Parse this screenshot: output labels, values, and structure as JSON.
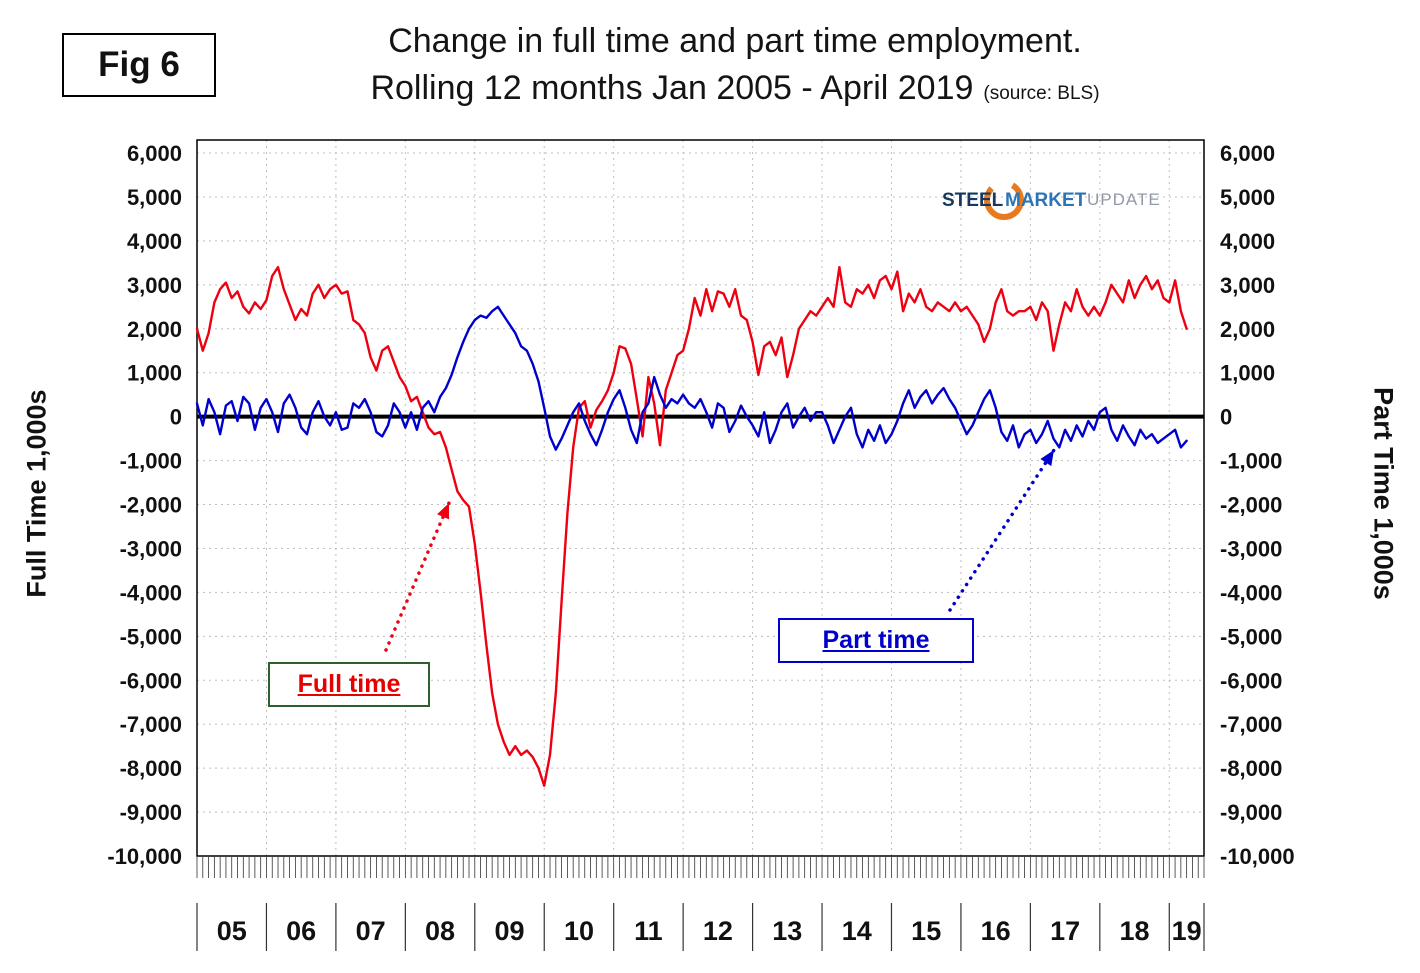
{
  "figure_label": "Fig 6",
  "title_line1": "Change in full time and part time employment.",
  "title_line2": "Rolling 12 months Jan 2005 - April 2019",
  "source_note": "(source: BLS)",
  "left_axis_title": "Full Time 1,000s",
  "right_axis_title": "Part Time 1,000s",
  "logo": {
    "word1": "STEEL",
    "word2": "MARKET",
    "word3": "UPDATE",
    "swoosh_color": "#e87a1e"
  },
  "annotations": {
    "full_time_label": "Full time",
    "part_time_label": "Part time"
  },
  "colors": {
    "full_time_line": "#ee0011",
    "part_time_line": "#0000cc",
    "zero_line": "#000000",
    "grid": "#bfbfbf",
    "axis_text": "#111111",
    "plot_border": "#000000"
  },
  "chart_data": {
    "type": "line",
    "title": "Change in full time and part time employment. Rolling 12 months Jan 2005 - April 2019",
    "frequency": "monthly",
    "x_start": "2005-01",
    "x_end": "2019-04",
    "categories": [
      "05",
      "06",
      "07",
      "08",
      "09",
      "10",
      "11",
      "12",
      "13",
      "14",
      "15",
      "16",
      "17",
      "18",
      "19"
    ],
    "ylabel_left": "Full Time 1,000s",
    "ylabel_right": "Part Time 1,000s",
    "ylim": [
      -10000,
      6000
    ],
    "ytick_step": 1000,
    "grid": true,
    "zero_line": true,
    "series": [
      {
        "name": "Full time",
        "axis": "left",
        "color": "#ee0011",
        "values": [
          2000,
          1500,
          1900,
          2600,
          2900,
          3050,
          2700,
          2850,
          2500,
          2350,
          2600,
          2450,
          2650,
          3200,
          3400,
          2900,
          2550,
          2200,
          2450,
          2300,
          2800,
          3000,
          2700,
          2900,
          3000,
          2800,
          2850,
          2200,
          2100,
          1900,
          1350,
          1050,
          1500,
          1600,
          1250,
          900,
          700,
          350,
          450,
          100,
          -250,
          -400,
          -350,
          -700,
          -1200,
          -1700,
          -1900,
          -2050,
          -2900,
          -4000,
          -5200,
          -6300,
          -7000,
          -7400,
          -7700,
          -7500,
          -7700,
          -7600,
          -7750,
          -8000,
          -8400,
          -7700,
          -6300,
          -4200,
          -2200,
          -700,
          200,
          350,
          -250,
          150,
          350,
          600,
          1000,
          1600,
          1550,
          1200,
          400,
          -450,
          900,
          300,
          -650,
          600,
          1000,
          1400,
          1500,
          2000,
          2700,
          2300,
          2900,
          2400,
          2850,
          2800,
          2500,
          2900,
          2300,
          2200,
          1700,
          950,
          1600,
          1700,
          1400,
          1800,
          900,
          1400,
          2000,
          2200,
          2400,
          2300,
          2500,
          2700,
          2500,
          3400,
          2600,
          2500,
          2900,
          2800,
          3000,
          2700,
          3100,
          3200,
          2900,
          3300,
          2400,
          2800,
          2600,
          2900,
          2500,
          2400,
          2600,
          2500,
          2400,
          2600,
          2400,
          2500,
          2300,
          2100,
          1700,
          2000,
          2600,
          2900,
          2400,
          2300,
          2400,
          2400,
          2500,
          2200,
          2600,
          2400,
          1500,
          2100,
          2600,
          2400,
          2900,
          2500,
          2300,
          2500,
          2300,
          2600,
          3000,
          2800,
          2600,
          3100,
          2700,
          3000,
          3200,
          2900,
          3100,
          2700,
          2600,
          3100,
          2400,
          2000
        ]
      },
      {
        "name": "Part time",
        "axis": "right",
        "color": "#0000cc",
        "values": [
          300,
          -200,
          400,
          100,
          -400,
          250,
          350,
          -100,
          450,
          300,
          -300,
          200,
          400,
          100,
          -350,
          300,
          500,
          200,
          -250,
          -400,
          100,
          350,
          0,
          -200,
          100,
          -300,
          -250,
          300,
          200,
          400,
          100,
          -350,
          -450,
          -200,
          300,
          100,
          -250,
          100,
          -300,
          200,
          350,
          100,
          450,
          650,
          950,
          1350,
          1700,
          2000,
          2200,
          2300,
          2250,
          2400,
          2500,
          2300,
          2100,
          1900,
          1600,
          1500,
          1200,
          800,
          200,
          -450,
          -750,
          -500,
          -200,
          100,
          300,
          -100,
          -400,
          -650,
          -300,
          100,
          400,
          600,
          200,
          -300,
          -600,
          100,
          300,
          900,
          500,
          200,
          400,
          300,
          500,
          300,
          200,
          400,
          100,
          -250,
          300,
          200,
          -350,
          -100,
          250,
          0,
          -200,
          -450,
          100,
          -600,
          -300,
          100,
          300,
          -250,
          0,
          200,
          -100,
          100,
          100,
          -200,
          -600,
          -300,
          0,
          200,
          -400,
          -700,
          -300,
          -550,
          -200,
          -600,
          -400,
          -100,
          300,
          600,
          200,
          450,
          600,
          300,
          500,
          650,
          400,
          200,
          -100,
          -400,
          -200,
          100,
          400,
          600,
          200,
          -350,
          -550,
          -200,
          -700,
          -400,
          -300,
          -600,
          -400,
          -100,
          -500,
          -700,
          -300,
          -550,
          -200,
          -450,
          -100,
          -300,
          100,
          200,
          -300,
          -550,
          -200,
          -450,
          -650,
          -300,
          -500,
          -400,
          -600,
          -500,
          -400,
          -300,
          -700,
          -550
        ]
      }
    ]
  }
}
